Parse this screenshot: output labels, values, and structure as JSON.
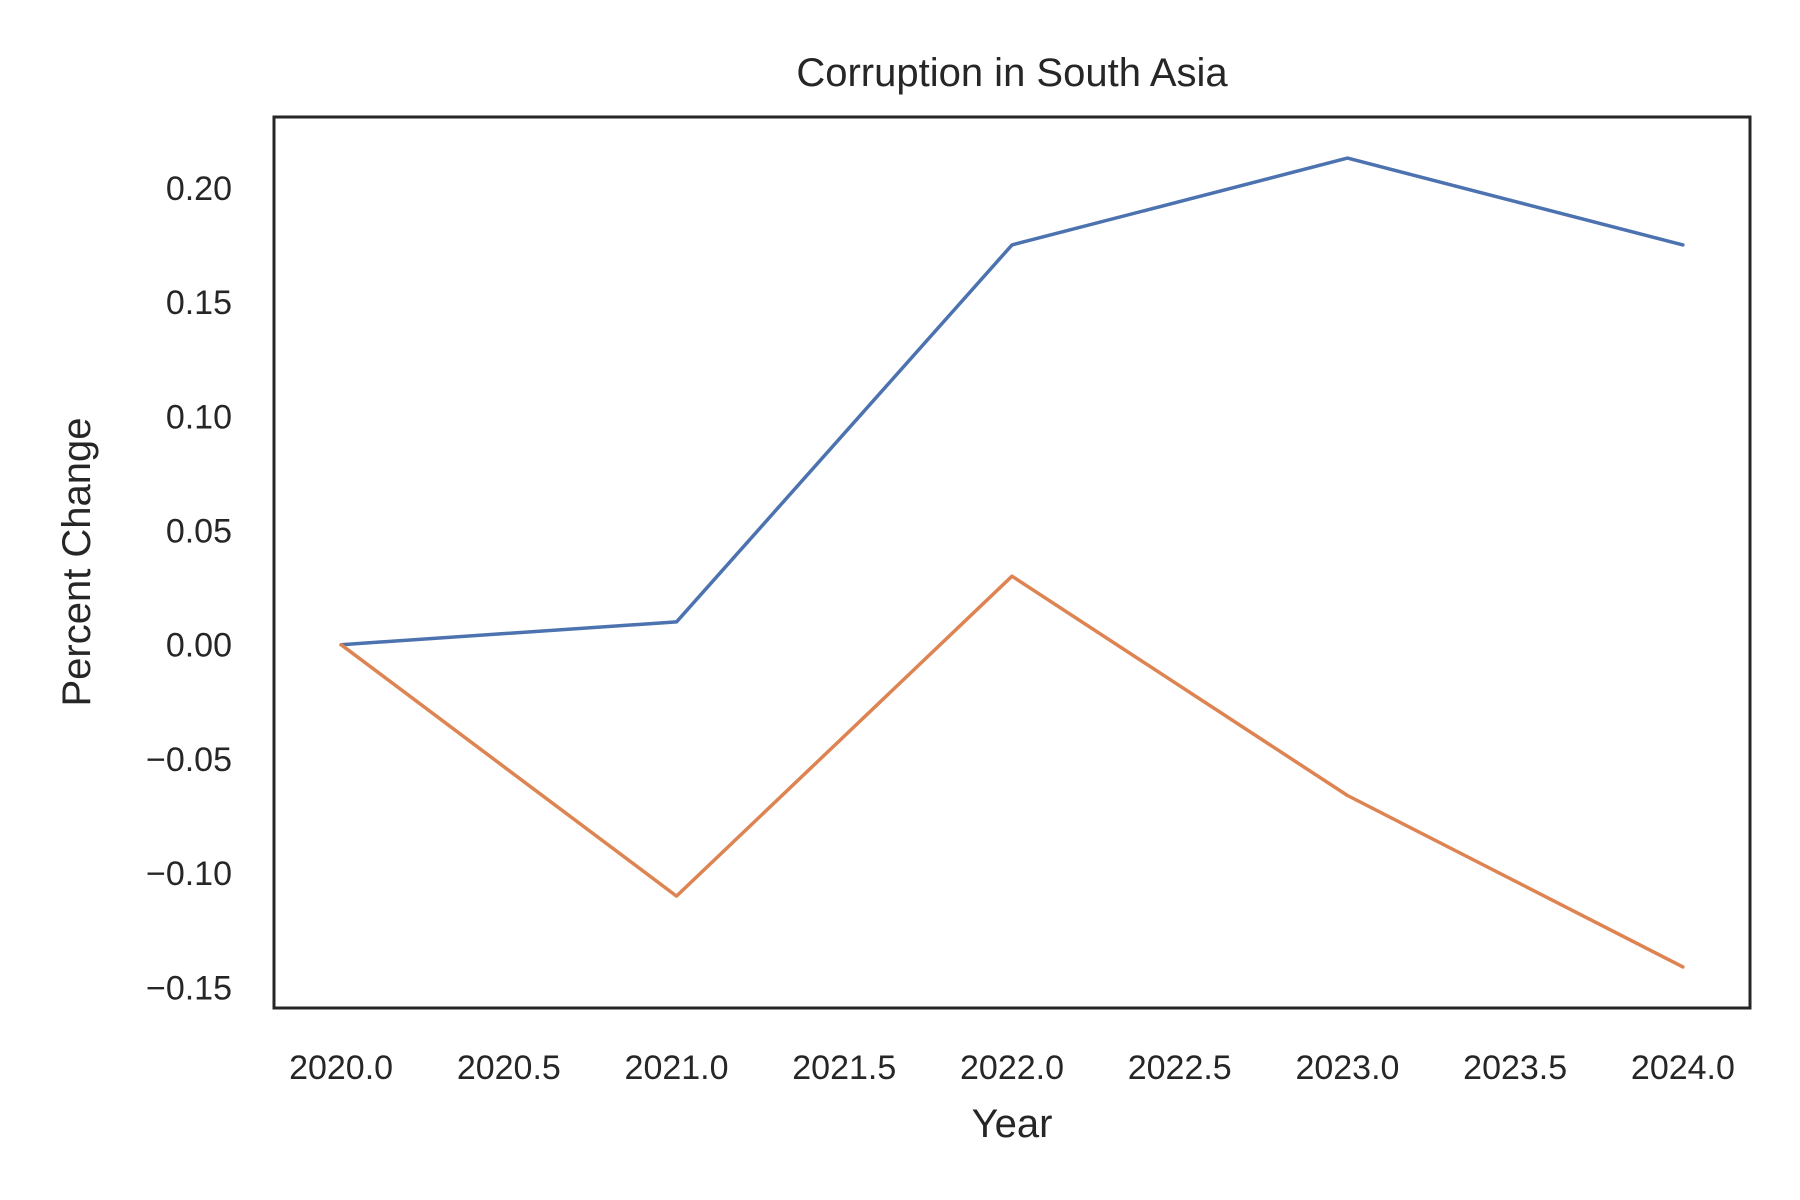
{
  "chart_data": {
    "type": "line",
    "title": "Corruption in South Asia",
    "xlabel": "Year",
    "ylabel": "Percent Change",
    "x": [
      2020,
      2021,
      2022,
      2023,
      2024
    ],
    "series": [
      {
        "color": "#4c72b0",
        "values": [
          0.0,
          0.01,
          0.175,
          0.213,
          0.175
        ]
      },
      {
        "color": "#dd8452",
        "values": [
          0.0,
          -0.11,
          0.03,
          -0.066,
          -0.141
        ]
      }
    ],
    "xlim": [
      2019.8,
      2024.2
    ],
    "ylim": [
      -0.159,
      0.231
    ],
    "xticks": [
      2020.0,
      2020.5,
      2021.0,
      2021.5,
      2022.0,
      2022.5,
      2023.0,
      2023.5,
      2024.0
    ],
    "xtick_labels": [
      "2020.0",
      "2020.5",
      "2021.0",
      "2021.5",
      "2022.0",
      "2022.5",
      "2023.0",
      "2023.5",
      "2024.0"
    ],
    "yticks": [
      0.2,
      0.15,
      0.1,
      0.05,
      0.0,
      -0.05,
      -0.1,
      -0.15
    ],
    "ytick_labels": [
      "0.20",
      "0.15",
      "0.10",
      "0.05",
      "0.00",
      "−0.05",
      "−0.10",
      "−0.15"
    ],
    "grid": false,
    "legend": false
  }
}
